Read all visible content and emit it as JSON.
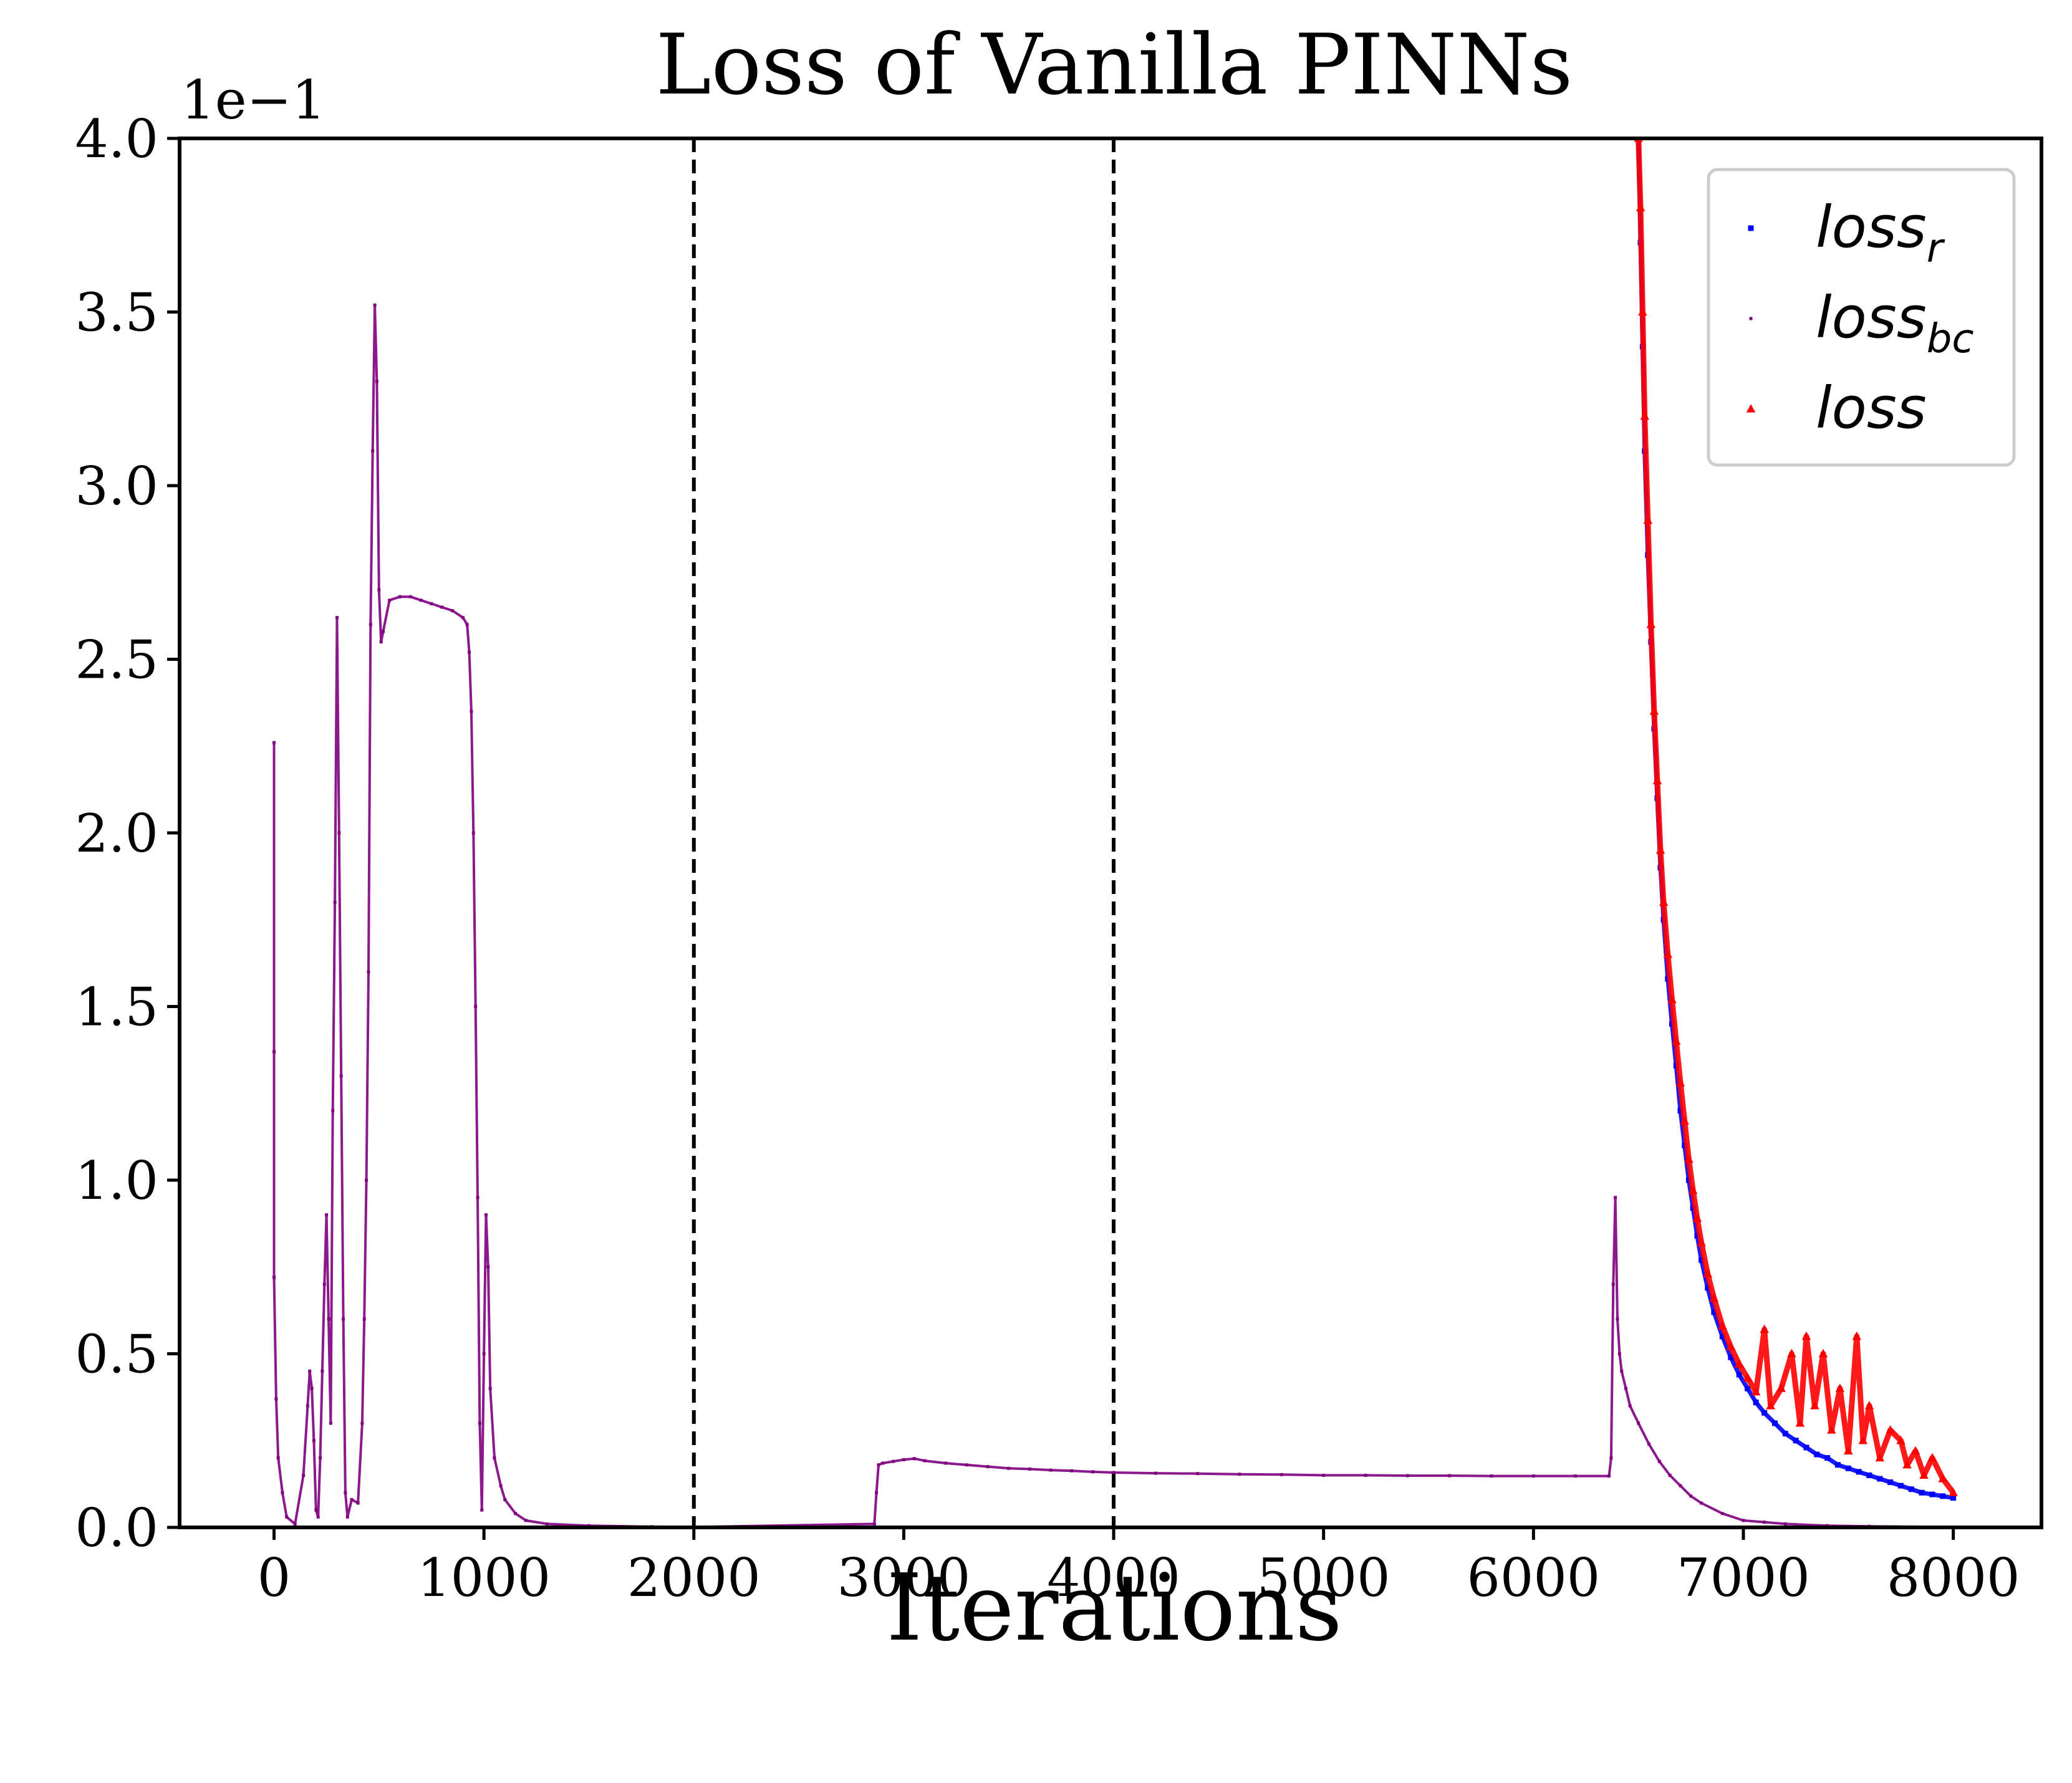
{
  "chart_data": {
    "type": "scatter",
    "title": "Loss of Vanilla PINNs",
    "xlabel": "Iterations",
    "ylabel": "",
    "y_offset_label": "1e−1",
    "xlim": [
      -450,
      8420
    ],
    "ylim": [
      0,
      0.4
    ],
    "x_ticks": [
      0,
      1000,
      2000,
      3000,
      4000,
      5000,
      6000,
      7000,
      8000
    ],
    "x_tick_labels": [
      "0",
      "1000",
      "2000",
      "3000",
      "4000",
      "5000",
      "6000",
      "7000",
      "8000"
    ],
    "y_ticks": [
      0,
      0.05,
      0.1,
      0.15,
      0.2,
      0.25,
      0.3,
      0.35,
      0.4
    ],
    "y_tick_labels": [
      "0.0",
      "0.5",
      "1.0",
      "1.5",
      "2.0",
      "2.5",
      "3.0",
      "3.5",
      "4.0"
    ],
    "grid": false,
    "vlines": [
      2000,
      4000
    ],
    "legend_position": "top-right",
    "series": [
      {
        "name": "loss_r",
        "legend_main": "loss",
        "legend_sub": "r",
        "marker": "square",
        "color": "#0000ff",
        "points": [
          [
            6500,
            0.4
          ],
          [
            6510,
            0.37
          ],
          [
            6520,
            0.34
          ],
          [
            6530,
            0.31
          ],
          [
            6545,
            0.28
          ],
          [
            6560,
            0.255
          ],
          [
            6575,
            0.23
          ],
          [
            6590,
            0.21
          ],
          [
            6605,
            0.19
          ],
          [
            6620,
            0.175
          ],
          [
            6640,
            0.158
          ],
          [
            6660,
            0.145
          ],
          [
            6680,
            0.133
          ],
          [
            6700,
            0.12
          ],
          [
            6720,
            0.11
          ],
          [
            6740,
            0.1
          ],
          [
            6760,
            0.092
          ],
          [
            6780,
            0.084
          ],
          [
            6800,
            0.077
          ],
          [
            6830,
            0.069
          ],
          [
            6860,
            0.062
          ],
          [
            6900,
            0.055
          ],
          [
            6940,
            0.049
          ],
          [
            6980,
            0.044
          ],
          [
            7020,
            0.04
          ],
          [
            7060,
            0.036
          ],
          [
            7100,
            0.033
          ],
          [
            7150,
            0.03
          ],
          [
            7200,
            0.027
          ],
          [
            7250,
            0.025
          ],
          [
            7300,
            0.023
          ],
          [
            7350,
            0.021
          ],
          [
            7400,
            0.02
          ],
          [
            7450,
            0.018
          ],
          [
            7500,
            0.017
          ],
          [
            7550,
            0.016
          ],
          [
            7600,
            0.015
          ],
          [
            7650,
            0.014
          ],
          [
            7700,
            0.013
          ],
          [
            7750,
            0.012
          ],
          [
            7800,
            0.011
          ],
          [
            7850,
            0.01
          ],
          [
            7900,
            0.0095
          ],
          [
            7950,
            0.009
          ],
          [
            8000,
            0.0085
          ]
        ]
      },
      {
        "name": "loss_bc",
        "legend_main": "loss",
        "legend_sub": "bc",
        "marker": "pixel",
        "color": "#800080",
        "points": [
          [
            0,
            0.226
          ],
          [
            0,
            0.137
          ],
          [
            0,
            0.072
          ],
          [
            10,
            0.037
          ],
          [
            20,
            0.02
          ],
          [
            40,
            0.01
          ],
          [
            60,
            0.003
          ],
          [
            100,
            0.001
          ],
          [
            140,
            0.015
          ],
          [
            160,
            0.035
          ],
          [
            170,
            0.045
          ],
          [
            180,
            0.04
          ],
          [
            190,
            0.025
          ],
          [
            200,
            0.005
          ],
          [
            210,
            0.003
          ],
          [
            220,
            0.02
          ],
          [
            230,
            0.045
          ],
          [
            240,
            0.07
          ],
          [
            250,
            0.09
          ],
          [
            260,
            0.06
          ],
          [
            270,
            0.03
          ],
          [
            280,
            0.12
          ],
          [
            290,
            0.18
          ],
          [
            300,
            0.262
          ],
          [
            310,
            0.2
          ],
          [
            320,
            0.13
          ],
          [
            330,
            0.06
          ],
          [
            340,
            0.01
          ],
          [
            350,
            0.003
          ],
          [
            370,
            0.008
          ],
          [
            400,
            0.007
          ],
          [
            420,
            0.03
          ],
          [
            430,
            0.06
          ],
          [
            440,
            0.1
          ],
          [
            450,
            0.16
          ],
          [
            460,
            0.26
          ],
          [
            470,
            0.31
          ],
          [
            480,
            0.352
          ],
          [
            490,
            0.33
          ],
          [
            500,
            0.27
          ],
          [
            510,
            0.255
          ],
          [
            520,
            0.258
          ],
          [
            550,
            0.267
          ],
          [
            600,
            0.268
          ],
          [
            650,
            0.268
          ],
          [
            700,
            0.267
          ],
          [
            750,
            0.266
          ],
          [
            800,
            0.265
          ],
          [
            850,
            0.264
          ],
          [
            900,
            0.262
          ],
          [
            920,
            0.26
          ],
          [
            930,
            0.252
          ],
          [
            940,
            0.235
          ],
          [
            950,
            0.2
          ],
          [
            960,
            0.15
          ],
          [
            970,
            0.095
          ],
          [
            980,
            0.03
          ],
          [
            990,
            0.005
          ],
          [
            1000,
            0.05
          ],
          [
            1010,
            0.09
          ],
          [
            1020,
            0.075
          ],
          [
            1030,
            0.04
          ],
          [
            1050,
            0.02
          ],
          [
            1080,
            0.012
          ],
          [
            1100,
            0.008
          ],
          [
            1150,
            0.004
          ],
          [
            1200,
            0.002
          ],
          [
            1300,
            0.001
          ],
          [
            1500,
            0.0005
          ],
          [
            1800,
            0.0002
          ],
          [
            2000,
            0.0001
          ],
          [
            2860,
            0.001
          ],
          [
            2870,
            0.01
          ],
          [
            2880,
            0.018
          ],
          [
            2900,
            0.0185
          ],
          [
            2950,
            0.019
          ],
          [
            3000,
            0.0195
          ],
          [
            3050,
            0.0198
          ],
          [
            3100,
            0.0192
          ],
          [
            3200,
            0.0185
          ],
          [
            3300,
            0.018
          ],
          [
            3400,
            0.0175
          ],
          [
            3500,
            0.017
          ],
          [
            3600,
            0.0168
          ],
          [
            3700,
            0.0165
          ],
          [
            3800,
            0.0163
          ],
          [
            3900,
            0.016
          ],
          [
            4000,
            0.0158
          ],
          [
            4200,
            0.0156
          ],
          [
            4400,
            0.0155
          ],
          [
            4600,
            0.0153
          ],
          [
            4800,
            0.0152
          ],
          [
            5000,
            0.015
          ],
          [
            5200,
            0.015
          ],
          [
            5400,
            0.0149
          ],
          [
            5600,
            0.0149
          ],
          [
            5800,
            0.0148
          ],
          [
            6000,
            0.0148
          ],
          [
            6200,
            0.0148
          ],
          [
            6360,
            0.0148
          ],
          [
            6370,
            0.02
          ],
          [
            6380,
            0.07
          ],
          [
            6390,
            0.095
          ],
          [
            6400,
            0.06
          ],
          [
            6410,
            0.05
          ],
          [
            6420,
            0.045
          ],
          [
            6440,
            0.04
          ],
          [
            6460,
            0.035
          ],
          [
            6500,
            0.03
          ],
          [
            6550,
            0.024
          ],
          [
            6600,
            0.019
          ],
          [
            6650,
            0.015
          ],
          [
            6700,
            0.012
          ],
          [
            6750,
            0.009
          ],
          [
            6800,
            0.007
          ],
          [
            6900,
            0.004
          ],
          [
            7000,
            0.002
          ],
          [
            7100,
            0.0015
          ],
          [
            7200,
            0.001
          ],
          [
            7400,
            0.0005
          ],
          [
            7600,
            0.0003
          ],
          [
            8000,
            0.0001
          ]
        ]
      },
      {
        "name": "loss",
        "legend_main": "loss",
        "legend_sub": "",
        "marker": "triangle",
        "color": "#ff0000",
        "points": [
          [
            6500,
            0.4
          ],
          [
            6510,
            0.38
          ],
          [
            6520,
            0.35
          ],
          [
            6530,
            0.32
          ],
          [
            6545,
            0.29
          ],
          [
            6560,
            0.26
          ],
          [
            6575,
            0.235
          ],
          [
            6590,
            0.215
          ],
          [
            6605,
            0.195
          ],
          [
            6620,
            0.18
          ],
          [
            6640,
            0.165
          ],
          [
            6660,
            0.152
          ],
          [
            6680,
            0.14
          ],
          [
            6700,
            0.128
          ],
          [
            6720,
            0.117
          ],
          [
            6740,
            0.106
          ],
          [
            6760,
            0.097
          ],
          [
            6780,
            0.089
          ],
          [
            6800,
            0.082
          ],
          [
            6830,
            0.073
          ],
          [
            6860,
            0.066
          ],
          [
            6900,
            0.058
          ],
          [
            6940,
            0.052
          ],
          [
            6980,
            0.047
          ],
          [
            7020,
            0.043
          ],
          [
            7060,
            0.039
          ],
          [
            7100,
            0.057
          ],
          [
            7130,
            0.035
          ],
          [
            7180,
            0.04
          ],
          [
            7230,
            0.05
          ],
          [
            7270,
            0.03
          ],
          [
            7300,
            0.055
          ],
          [
            7340,
            0.035
          ],
          [
            7380,
            0.05
          ],
          [
            7420,
            0.028
          ],
          [
            7460,
            0.04
          ],
          [
            7500,
            0.022
          ],
          [
            7540,
            0.055
          ],
          [
            7570,
            0.025
          ],
          [
            7600,
            0.035
          ],
          [
            7650,
            0.02
          ],
          [
            7700,
            0.028
          ],
          [
            7750,
            0.025
          ],
          [
            7780,
            0.018
          ],
          [
            7820,
            0.022
          ],
          [
            7860,
            0.015
          ],
          [
            7900,
            0.02
          ],
          [
            7950,
            0.014
          ],
          [
            8000,
            0.01
          ]
        ]
      }
    ]
  }
}
